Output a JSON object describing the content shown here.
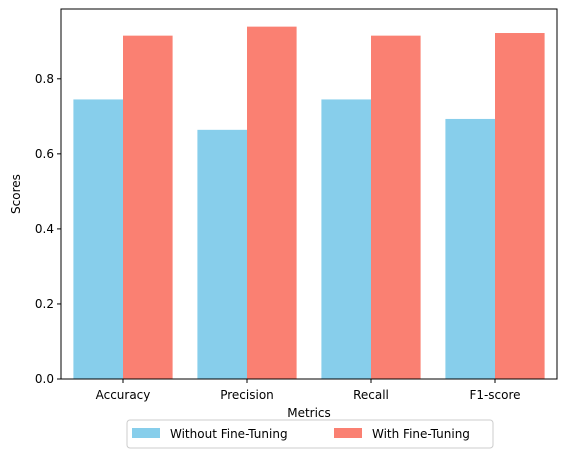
{
  "chart_data": {
    "type": "bar",
    "title": "",
    "xlabel": "Metrics",
    "ylabel": "Scores",
    "categories": [
      "Accuracy",
      "Precision",
      "Recall",
      "F1-score"
    ],
    "series": [
      {
        "name": "Without Fine-Tuning",
        "color": "#87CEEB",
        "values": [
          0.745,
          0.664,
          0.745,
          0.693
        ]
      },
      {
        "name": "With Fine-Tuning",
        "color": "#FA8072",
        "values": [
          0.915,
          0.939,
          0.915,
          0.922
        ]
      }
    ],
    "ylim": [
      0,
      0.986
    ],
    "yticks": [
      0.0,
      0.2,
      0.4,
      0.6,
      0.8
    ],
    "ytick_labels": [
      "0.0",
      "0.2",
      "0.4",
      "0.6",
      "0.8"
    ],
    "grid": false,
    "legend_position": "bottom-center"
  }
}
